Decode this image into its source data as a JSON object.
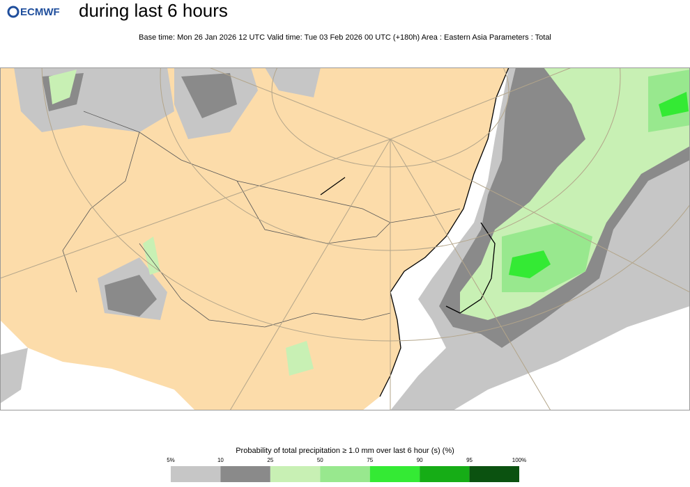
{
  "header": {
    "logo": "ECMWF",
    "title": "during last 6 hours",
    "subtitle": "Base time: Mon 26 Jan 2026 12 UTC Valid time: Tue 03 Feb 2026 00 UTC (+180h) Area : Eastern Asia Parameters : Total"
  },
  "legend": {
    "title": "Probability of total precipitation ≥ 1.0 mm over last 6 hour (s) (%)",
    "ticks": [
      "5%",
      "10",
      "25",
      "50",
      "75",
      "90",
      "95",
      "100%"
    ],
    "colors": [
      "#c6c6c6",
      "#8a8a8a",
      "#c8f0b4",
      "#98e88e",
      "#34ea34",
      "#16ad16",
      "#0b5210"
    ]
  }
}
